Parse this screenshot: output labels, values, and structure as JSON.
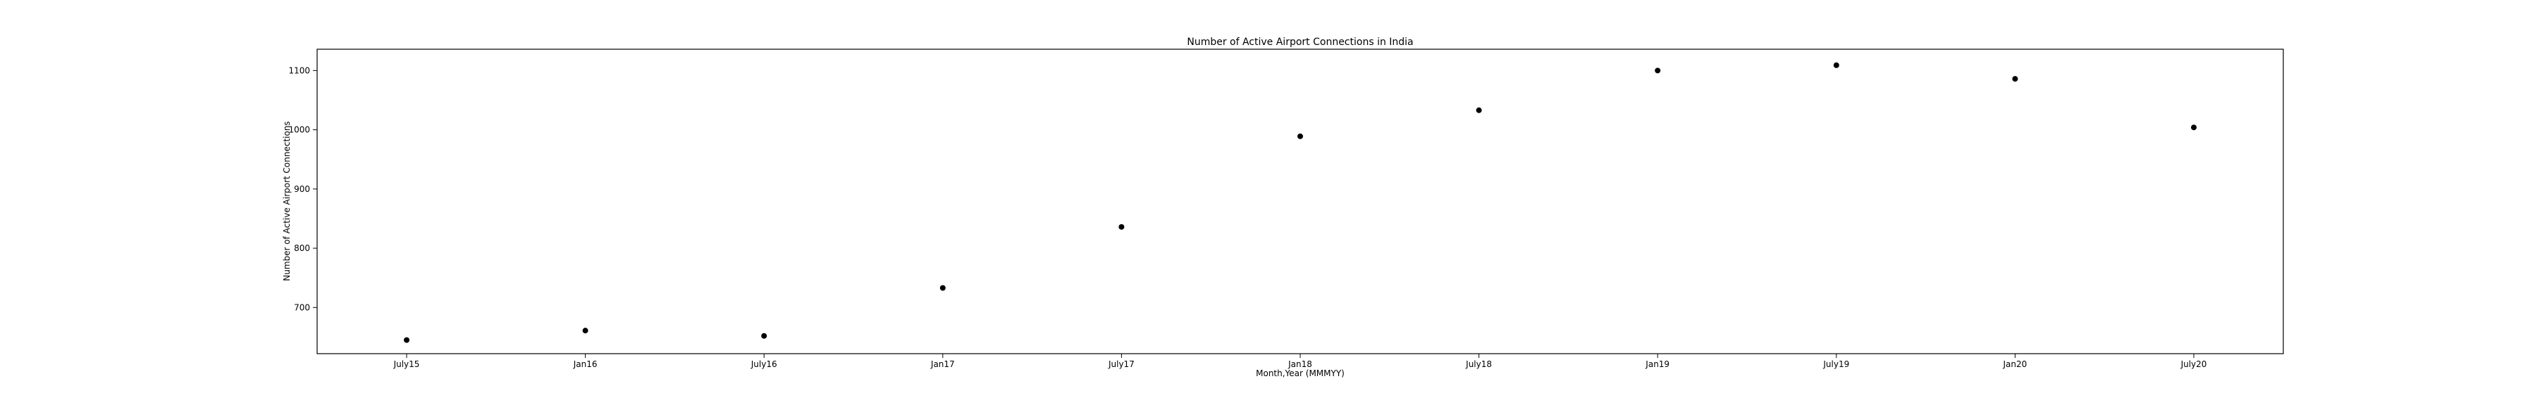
{
  "chart_data": {
    "type": "scatter",
    "title": "Number of Active Airport Connections in India",
    "xlabel": "Month,Year (MMMYY)",
    "ylabel": "Number of Active Airport Connections",
    "categories": [
      "July15",
      "Jan16",
      "July16",
      "Jan17",
      "July17",
      "Jan18",
      "July18",
      "Jan19",
      "July19",
      "Jan20",
      "July20"
    ],
    "values": [
      645,
      661,
      652,
      733,
      836,
      989,
      1033,
      1100,
      1109,
      1086,
      1004
    ],
    "yticks": [
      700,
      800,
      900,
      1000,
      1100
    ],
    "ylim": [
      622,
      1136
    ],
    "grid": false,
    "marker_color": "#000000"
  }
}
